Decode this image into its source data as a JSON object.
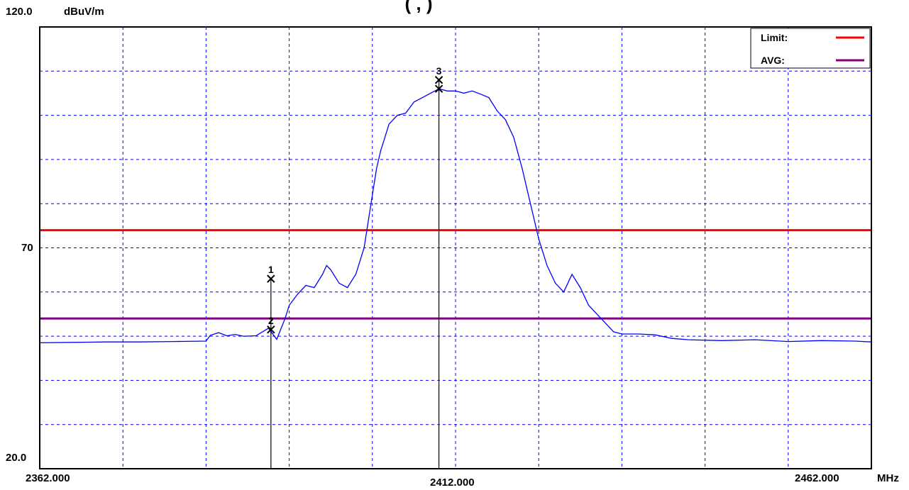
{
  "chart_data": {
    "type": "line",
    "title_fragment": "(                      ,           )",
    "y_unit": "dBuV/m",
    "x_unit": "MHz",
    "xlim": [
      2362.0,
      2462.0
    ],
    "ylim": [
      20.0,
      120.0
    ],
    "y_tick_labels": [
      "120.0",
      "70",
      "20.0"
    ],
    "x_tick_labels": [
      "2362.000",
      "2412.000",
      "2462.000"
    ],
    "grid": true,
    "legend_position": "top-right",
    "colors": {
      "trace": "#0000ff",
      "limit": "#ff0000",
      "avg": "#800080",
      "grid": "#0000ff",
      "marker": "#000000"
    },
    "limit_lines": [
      {
        "name": "Limit:",
        "value": 74.0,
        "color": "#ff0000"
      },
      {
        "name": "AVG:",
        "value": 54.0,
        "color": "#800080"
      }
    ],
    "markers": [
      {
        "label": "1",
        "x": 2389.8,
        "y": 63.0
      },
      {
        "label": "2",
        "x": 2389.8,
        "y": 51.5
      },
      {
        "label": "3",
        "x": 2410.0,
        "y": 108.0
      },
      {
        "label": "",
        "x": 2410.0,
        "y": 106.0
      }
    ],
    "series": [
      {
        "color": "#0000ff",
        "x": [
          2362.0,
          2366.0,
          2370.0,
          2374.0,
          2378.0,
          2382.0,
          2382.5,
          2383.5,
          2384.5,
          2385.5,
          2386.5,
          2388.0,
          2389.5,
          2390.5,
          2391.5,
          2392.0,
          2393.0,
          2394.0,
          2395.0,
          2396.0,
          2396.5,
          2397.0,
          2398.0,
          2399.0,
          2400.0,
          2401.0,
          2402.0,
          2402.5,
          2403.0,
          2403.5,
          2404.0,
          2405.0,
          2406.0,
          2407.0,
          2408.0,
          2409.0,
          2410.0,
          2411.0,
          2412.0,
          2413.0,
          2414.0,
          2415.0,
          2416.0,
          2417.0,
          2418.0,
          2419.0,
          2420.0,
          2421.0,
          2422.0,
          2423.0,
          2423.5,
          2424.0,
          2425.0,
          2426.0,
          2427.0,
          2428.0,
          2429.0,
          2430.0,
          2431.0,
          2432.0,
          2434.0,
          2436.0,
          2438.0,
          2440.0,
          2444.0,
          2448.0,
          2452.0,
          2456.0,
          2460.0,
          2462.0
        ],
        "y": [
          48.5,
          48.6,
          48.7,
          48.7,
          48.8,
          48.9,
          50.2,
          50.8,
          50.1,
          50.4,
          50.0,
          50.1,
          51.8,
          49.3,
          54.0,
          57.0,
          59.5,
          61.5,
          61.0,
          64.0,
          66.0,
          65.0,
          62.0,
          61.0,
          64.0,
          70.0,
          82.0,
          88.0,
          92.0,
          95.0,
          98.0,
          100.0,
          100.5,
          103.0,
          104.0,
          105.0,
          106.0,
          105.5,
          105.5,
          105.0,
          105.5,
          104.8,
          104.0,
          101.0,
          99.0,
          95.0,
          88.0,
          80.0,
          72.0,
          66.0,
          64.0,
          62.0,
          60.0,
          64.0,
          61.0,
          57.0,
          55.0,
          53.0,
          51.0,
          50.5,
          50.5,
          50.3,
          49.5,
          49.2,
          49.0,
          49.2,
          48.8,
          49.0,
          48.9,
          48.7
        ]
      }
    ]
  }
}
